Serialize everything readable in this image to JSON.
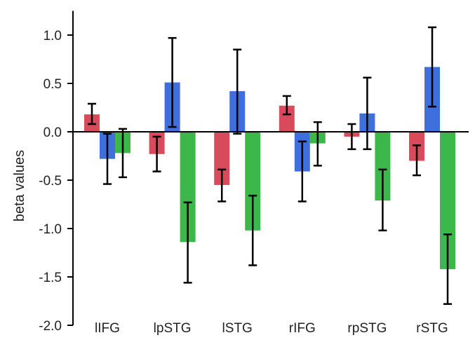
{
  "chart_data": {
    "type": "bar",
    "title": "",
    "xlabel": "",
    "ylabel": "beta values",
    "ylim": [
      -2.0,
      1.25
    ],
    "yticks": [
      1.0,
      0.5,
      0.0,
      -0.5,
      -1.0,
      -1.5,
      -2.0
    ],
    "ytick_labels": [
      "1.0",
      "0.5",
      "0.0",
      "-0.5",
      "-1.0",
      "-1.5",
      "-2.0"
    ],
    "categories": [
      "lIFG",
      "lpSTG",
      "lSTG",
      "rIFG",
      "rpSTG",
      "rSTG"
    ],
    "grid": false,
    "legend": "none",
    "error_bars": true,
    "series": [
      {
        "color": "#d94a5a",
        "values": [
          0.18,
          -0.23,
          -0.55,
          0.27,
          -0.05,
          -0.3
        ],
        "err_low": [
          0.08,
          -0.41,
          -0.72,
          0.18,
          -0.18,
          -0.45
        ],
        "err_high": [
          0.29,
          -0.05,
          -0.39,
          0.37,
          0.08,
          -0.14
        ]
      },
      {
        "color": "#3f6fdc",
        "values": [
          -0.28,
          0.51,
          0.42,
          -0.41,
          0.19,
          0.67
        ],
        "err_low": [
          -0.54,
          0.05,
          -0.02,
          -0.72,
          -0.18,
          0.26
        ],
        "err_high": [
          -0.02,
          0.97,
          0.85,
          -0.1,
          0.56,
          1.08
        ]
      },
      {
        "color": "#3cb84a",
        "values": [
          -0.22,
          -1.14,
          -1.02,
          -0.12,
          -0.71,
          -1.42
        ],
        "err_low": [
          -0.47,
          -1.56,
          -1.38,
          -0.35,
          -1.02,
          -1.78
        ],
        "err_high": [
          0.03,
          -0.73,
          -0.66,
          0.1,
          -0.39,
          -1.06
        ]
      }
    ]
  }
}
